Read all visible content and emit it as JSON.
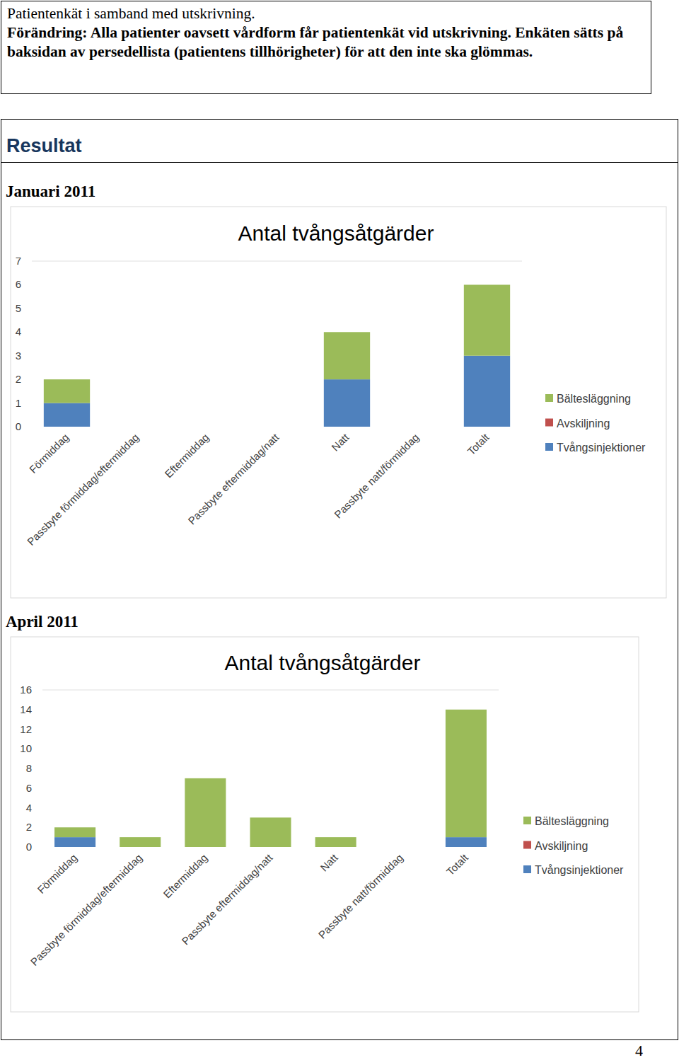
{
  "header": {
    "title": "Patientenkät i samband med utskrivning.",
    "text": "Förändring: Alla patienter oavsett vårdform får patientenkät vid utskrivning. Enkäten sätts på baksidan av persedellista (patientens tillhörigheter) för att den inte ska glömmas."
  },
  "results": {
    "heading": "Resultat",
    "periods": [
      "Januari 2011",
      "April 2011"
    ]
  },
  "page_number": "4",
  "chart_data": [
    {
      "type": "bar",
      "stacked": true,
      "grid": false,
      "legend": "right",
      "title": "Antal tvångsåtgärder",
      "categories": [
        "Förmiddag",
        "Passbyte förmiddag/eftermiddag",
        "Eftermiddag",
        "Passbyte eftermiddag/natt",
        "Natt",
        "Passbyte natt/förmiddag",
        "Totalt"
      ],
      "series": [
        {
          "name": "Tvångsinjektioner",
          "color": "#4f81bd",
          "values": [
            1,
            0,
            0,
            0,
            2,
            0,
            3
          ]
        },
        {
          "name": "Avskiljning",
          "color": "#c0504d",
          "values": [
            0,
            0,
            0,
            0,
            0,
            0,
            0
          ]
        },
        {
          "name": "Bältesläggning",
          "color": "#9bbb59",
          "values": [
            1,
            0,
            0,
            0,
            2,
            0,
            3
          ]
        }
      ],
      "ylim": [
        0,
        7
      ],
      "yticks": [
        0,
        1,
        2,
        3,
        4,
        5,
        6,
        7
      ]
    },
    {
      "type": "bar",
      "stacked": true,
      "grid": false,
      "legend": "right",
      "title": "Antal tvångsåtgärder",
      "categories": [
        "Förmiddag",
        "Passbyte förmiddag/eftermiddag",
        "Eftermiddag",
        "Passbyte eftermiddag/natt",
        "Natt",
        "Passbyte natt/förmiddag",
        "Totalt"
      ],
      "series": [
        {
          "name": "Tvångsinjektioner",
          "color": "#4f81bd",
          "values": [
            1,
            0,
            0,
            0,
            0,
            0,
            1
          ]
        },
        {
          "name": "Avskiljning",
          "color": "#c0504d",
          "values": [
            0,
            0,
            0,
            0,
            0,
            0,
            0
          ]
        },
        {
          "name": "Bältesläggning",
          "color": "#9bbb59",
          "values": [
            1,
            1,
            7,
            3,
            1,
            0,
            13
          ]
        }
      ],
      "ylim": [
        0,
        16
      ],
      "yticks": [
        0,
        2,
        4,
        6,
        8,
        10,
        12,
        14,
        16
      ]
    }
  ]
}
